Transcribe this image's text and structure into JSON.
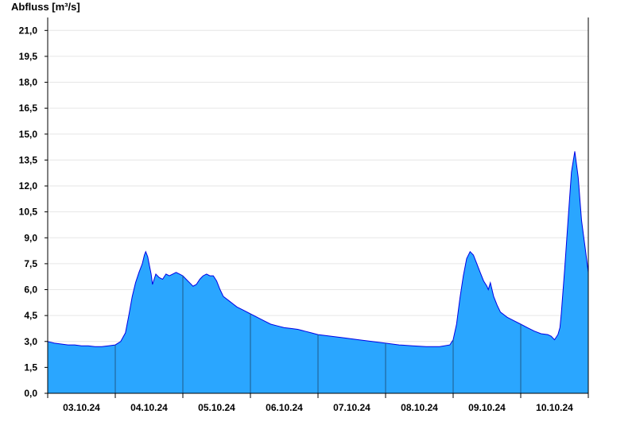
{
  "chart_data": {
    "type": "area",
    "title": "",
    "ylabel": "Abfluss [m³/s]",
    "xlabel": "",
    "ylim": [
      0,
      21.75
    ],
    "xlim": [
      0,
      8
    ],
    "yticks": [
      "0,0",
      "1,5",
      "3,0",
      "4,5",
      "6,0",
      "7,5",
      "9,0",
      "10,5",
      "12,0",
      "13,5",
      "15,0",
      "16,5",
      "18,0",
      "19,5",
      "21,0"
    ],
    "ytick_values": [
      0,
      1.5,
      3,
      4.5,
      6,
      7.5,
      9,
      10.5,
      12,
      13.5,
      15,
      16.5,
      18,
      19.5,
      21
    ],
    "categories": [
      "03.10.24",
      "04.10.24",
      "05.10.24",
      "06.10.24",
      "07.10.24",
      "08.10.24",
      "09.10.24",
      "10.10.24"
    ],
    "grid": true,
    "colors": {
      "fill": "#2aa6ff",
      "line": "#0000e6",
      "grid": "#e6e6e6",
      "axis": "#000000",
      "separator": "#1f5a8a"
    },
    "series": [
      {
        "x": [
          0,
          0.1,
          0.2,
          0.3,
          0.4,
          0.5,
          0.6,
          0.7,
          0.8,
          0.9,
          1.0,
          1.08,
          1.15,
          1.2,
          1.25,
          1.3,
          1.35,
          1.4,
          1.43,
          1.45,
          1.48,
          1.5,
          1.53,
          1.55,
          1.6,
          1.65,
          1.7,
          1.75,
          1.8,
          1.85,
          1.9,
          1.95,
          2.0,
          2.05,
          2.1,
          2.15,
          2.2,
          2.25,
          2.3,
          2.35,
          2.4,
          2.45,
          2.5,
          2.55,
          2.6,
          2.7,
          2.8,
          2.9,
          3.0,
          3.1,
          3.2,
          3.3,
          3.4,
          3.5,
          3.6,
          3.7,
          3.8,
          3.9,
          4.0,
          4.2,
          4.4,
          4.6,
          4.8,
          5.0,
          5.2,
          5.4,
          5.6,
          5.8,
          5.95,
          6.0,
          6.05,
          6.1,
          6.15,
          6.2,
          6.25,
          6.3,
          6.35,
          6.4,
          6.45,
          6.5,
          6.52,
          6.55,
          6.6,
          6.65,
          6.7,
          6.8,
          6.9,
          7.0,
          7.1,
          7.2,
          7.3,
          7.4,
          7.45,
          7.5,
          7.55,
          7.58,
          7.6,
          7.65,
          7.7,
          7.75,
          7.8,
          7.85,
          7.9,
          7.95,
          8.0
        ],
        "values": [
          3.0,
          2.9,
          2.85,
          2.8,
          2.8,
          2.75,
          2.75,
          2.7,
          2.7,
          2.75,
          2.8,
          3.0,
          3.5,
          4.5,
          5.6,
          6.4,
          7.0,
          7.5,
          8.0,
          8.2,
          7.9,
          7.5,
          6.9,
          6.3,
          6.9,
          6.7,
          6.6,
          6.9,
          6.8,
          6.9,
          7.0,
          6.9,
          6.8,
          6.6,
          6.4,
          6.2,
          6.3,
          6.6,
          6.8,
          6.9,
          6.8,
          6.8,
          6.5,
          6.0,
          5.6,
          5.3,
          5.0,
          4.8,
          4.6,
          4.4,
          4.2,
          4.0,
          3.9,
          3.8,
          3.75,
          3.7,
          3.6,
          3.5,
          3.4,
          3.3,
          3.2,
          3.1,
          3.0,
          2.9,
          2.8,
          2.75,
          2.7,
          2.7,
          2.8,
          3.1,
          4.0,
          5.5,
          6.8,
          7.8,
          8.2,
          8.0,
          7.5,
          7.0,
          6.5,
          6.2,
          6.0,
          6.4,
          5.6,
          5.1,
          4.7,
          4.4,
          4.2,
          4.0,
          3.8,
          3.6,
          3.45,
          3.4,
          3.3,
          3.1,
          3.4,
          3.8,
          4.6,
          7.2,
          10.0,
          12.8,
          14.0,
          12.5,
          10.0,
          8.5,
          7.0
        ]
      }
    ]
  }
}
